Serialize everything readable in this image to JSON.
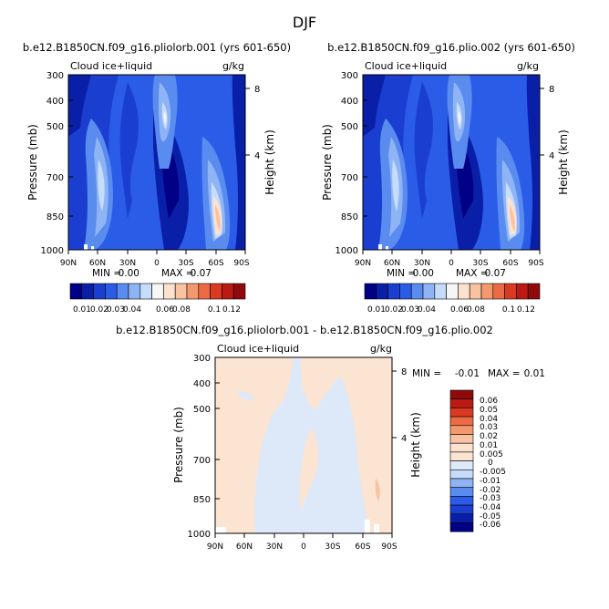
{
  "page_title": "DJF",
  "chart_data": [
    {
      "type": "heatmap",
      "title": "b.e12.B1850CN.f09_g16.pliolorb.001 (yrs 601-650)",
      "variable": "Cloud ice+liquid",
      "units": "g/kg",
      "xlabel": "",
      "ylabel": "Pressure (mb)",
      "ylabel_right": "Height (km)",
      "x_ticks": [
        "90N",
        "60N",
        "30N",
        "0",
        "30S",
        "60S",
        "90S"
      ],
      "y_ticks": [
        300,
        400,
        500,
        700,
        850,
        1000
      ],
      "y_ticks_right": [
        8,
        4
      ],
      "ylim": [
        1000,
        300
      ],
      "y_scale": "log",
      "min_label": "MIN =",
      "min": "0.00",
      "max_label": "MAX =",
      "max": "0.07",
      "colorbar_levels": [
        "0.01",
        "0.02",
        "0.03",
        "0.04",
        "0.06",
        "0.08",
        "0.1",
        "0.12"
      ],
      "colorbar_colors": [
        "#000087",
        "#0a1fa8",
        "#1a3fd0",
        "#2b5ce8",
        "#5a8cf0",
        "#8fb4f6",
        "#c6dcfb",
        "#f6f6f6",
        "#fde1cf",
        "#f9c2a1",
        "#f4996e",
        "#ec6a44",
        "#db3a22",
        "#bb1a12",
        "#8f0b0b"
      ]
    },
    {
      "type": "heatmap",
      "title": "b.e12.B1850CN.f09_g16.plio.002 (yrs 601-650)",
      "variable": "Cloud ice+liquid",
      "units": "g/kg",
      "xlabel": "",
      "ylabel": "Pressure (mb)",
      "ylabel_right": "Height (km)",
      "x_ticks": [
        "90N",
        "60N",
        "30N",
        "0",
        "30S",
        "60S",
        "90S"
      ],
      "y_ticks": [
        300,
        400,
        500,
        700,
        850,
        1000
      ],
      "y_ticks_right": [
        8,
        4
      ],
      "ylim": [
        1000,
        300
      ],
      "y_scale": "log",
      "min_label": "MIN =",
      "min": "0.00",
      "max_label": "MAX =",
      "max": "0.07",
      "colorbar_levels": [
        "0.01",
        "0.02",
        "0.03",
        "0.04",
        "0.06",
        "0.08",
        "0.1",
        "0.12"
      ]
    },
    {
      "type": "heatmap",
      "title": "b.e12.B1850CN.f09_g16.pliolorb.001 - b.e12.B1850CN.f09_g16.plio.002",
      "variable": "Cloud ice+liquid",
      "units": "g/kg",
      "xlabel": "",
      "ylabel": "Pressure (mb)",
      "ylabel_right": "Height (km)",
      "x_ticks": [
        "90N",
        "60N",
        "30N",
        "0",
        "30S",
        "60S",
        "90S"
      ],
      "y_ticks": [
        300,
        400,
        500,
        700,
        850,
        1000
      ],
      "y_ticks_right": [
        8,
        4
      ],
      "ylim": [
        1000,
        300
      ],
      "y_scale": "log",
      "min_label": "MIN =",
      "min": "-0.01",
      "max_label": "MAX =",
      "max": "0.01",
      "colorbar_levels": [
        "0.06",
        "0.05",
        "0.04",
        "0.03",
        "0.02",
        "0.01",
        "0.005",
        "0",
        "-0.005",
        "-0.01",
        "-0.02",
        "-0.03",
        "-0.04",
        "-0.05",
        "-0.06"
      ],
      "colorbar_colors": [
        "#8f0b0b",
        "#bb1a12",
        "#db3a22",
        "#ec6a44",
        "#f4996e",
        "#f9c2a1",
        "#fde1cf",
        "#fbe4d2",
        "#dde9f8",
        "#c6dcfb",
        "#8fb4f6",
        "#5a8cf0",
        "#2b5ce8",
        "#1a3fd0",
        "#0a1fa8",
        "#000087"
      ]
    }
  ]
}
